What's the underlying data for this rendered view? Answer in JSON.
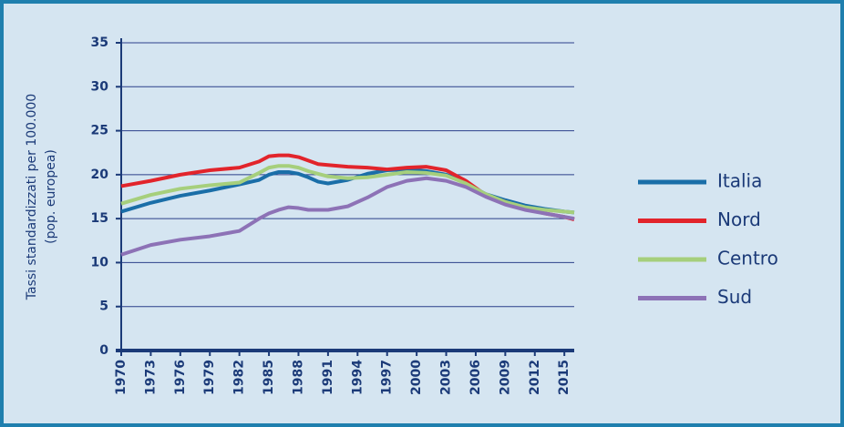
{
  "chart_data": {
    "type": "line",
    "y_label": [
      "Tassi standardizzati per 100.000",
      "(pop. europea)"
    ],
    "x": [
      1970,
      1973,
      1976,
      1979,
      1982,
      1984,
      1985,
      1986,
      1987,
      1988,
      1989,
      1990,
      1991,
      1993,
      1995,
      1997,
      1999,
      2001,
      2003,
      2005,
      2007,
      2009,
      2011,
      2013,
      2015,
      2016
    ],
    "series": [
      {
        "name": "Italia",
        "color": "#1a6ea8",
        "values": [
          15.8,
          16.8,
          17.6,
          18.2,
          18.9,
          19.4,
          20.0,
          20.3,
          20.3,
          20.1,
          19.7,
          19.2,
          19.0,
          19.4,
          20.1,
          20.5,
          20.6,
          20.4,
          20.0,
          19.0,
          17.8,
          17.1,
          16.5,
          16.1,
          15.8,
          15.7
        ]
      },
      {
        "name": "Nord",
        "color": "#e2242b",
        "values": [
          18.7,
          19.3,
          20.0,
          20.5,
          20.8,
          21.5,
          22.1,
          22.2,
          22.2,
          22.0,
          21.6,
          21.2,
          21.1,
          20.9,
          20.8,
          20.6,
          20.8,
          20.9,
          20.5,
          19.3,
          17.7,
          16.9,
          16.1,
          15.6,
          15.2,
          14.9
        ]
      },
      {
        "name": "Centro",
        "color": "#a6cf7c",
        "values": [
          16.7,
          17.7,
          18.4,
          18.8,
          19.1,
          20.2,
          20.8,
          21.0,
          21.0,
          20.8,
          20.4,
          20.1,
          19.8,
          19.6,
          19.7,
          20.0,
          20.3,
          20.2,
          19.9,
          19.0,
          17.8,
          16.9,
          16.3,
          16.0,
          15.8,
          15.7
        ]
      },
      {
        "name": "Sud",
        "color": "#8d72b6",
        "values": [
          10.9,
          12.0,
          12.6,
          13.0,
          13.6,
          15.0,
          15.6,
          16.0,
          16.3,
          16.2,
          16.0,
          16.0,
          16.0,
          16.4,
          17.4,
          18.6,
          19.3,
          19.6,
          19.3,
          18.6,
          17.5,
          16.6,
          16.0,
          15.6,
          15.2,
          15.0
        ]
      }
    ],
    "xlim": [
      1970,
      2016
    ],
    "xticks": [
      1970,
      1973,
      1976,
      1979,
      1982,
      1985,
      1988,
      1991,
      1994,
      1997,
      2000,
      2003,
      2006,
      2009,
      2012,
      2015
    ],
    "ylim": [
      0,
      35
    ],
    "yticks": [
      0,
      5,
      10,
      15,
      20,
      25,
      30,
      35
    ],
    "grid": true,
    "legend": "right"
  }
}
